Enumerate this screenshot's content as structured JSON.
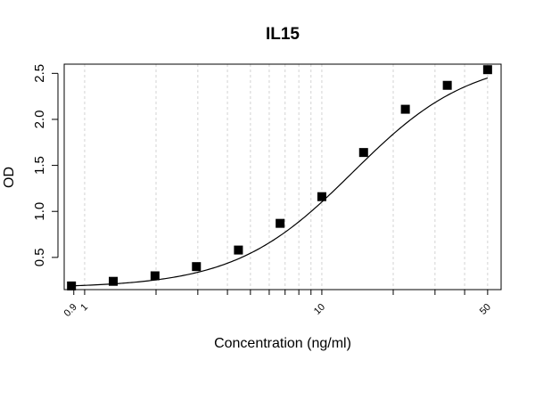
{
  "chart_data": {
    "type": "scatter",
    "title": "IL15",
    "xlabel": "Concentration (ng/ml)",
    "ylabel": "OD",
    "x_scale": "log",
    "xlim": [
      0.82,
      57
    ],
    "ylim": [
      0.15,
      2.6
    ],
    "x_tick_values": [
      0.9,
      1,
      10,
      50
    ],
    "x_tick_labels": [
      "0.9",
      "1",
      "10",
      "50"
    ],
    "y_tick_values": [
      0.5,
      1.0,
      1.5,
      2.0,
      2.5
    ],
    "y_tick_labels": [
      "0.5",
      "1.0",
      "1.5",
      "2.0",
      "2.5"
    ],
    "grid": "vertical dashed at log decades (1–9, 10–50)",
    "legend": "none",
    "series": [
      {
        "marker": "square",
        "x": [
          0.88,
          1.32,
          1.98,
          2.96,
          4.45,
          6.67,
          10.0,
          15.0,
          22.5,
          33.8,
          50.0
        ],
        "y": [
          0.19,
          0.24,
          0.3,
          0.4,
          0.58,
          0.87,
          1.16,
          1.64,
          2.11,
          2.37,
          2.54
        ]
      }
    ],
    "fit_curve": {
      "type": "4PL",
      "bottom": 0.17,
      "top": 2.68,
      "ec50": 13.5,
      "hill": 1.75
    },
    "colors": {
      "points": "#000000",
      "curve": "#000000",
      "grid": "#d3d3d3",
      "frame": "#000000"
    }
  }
}
